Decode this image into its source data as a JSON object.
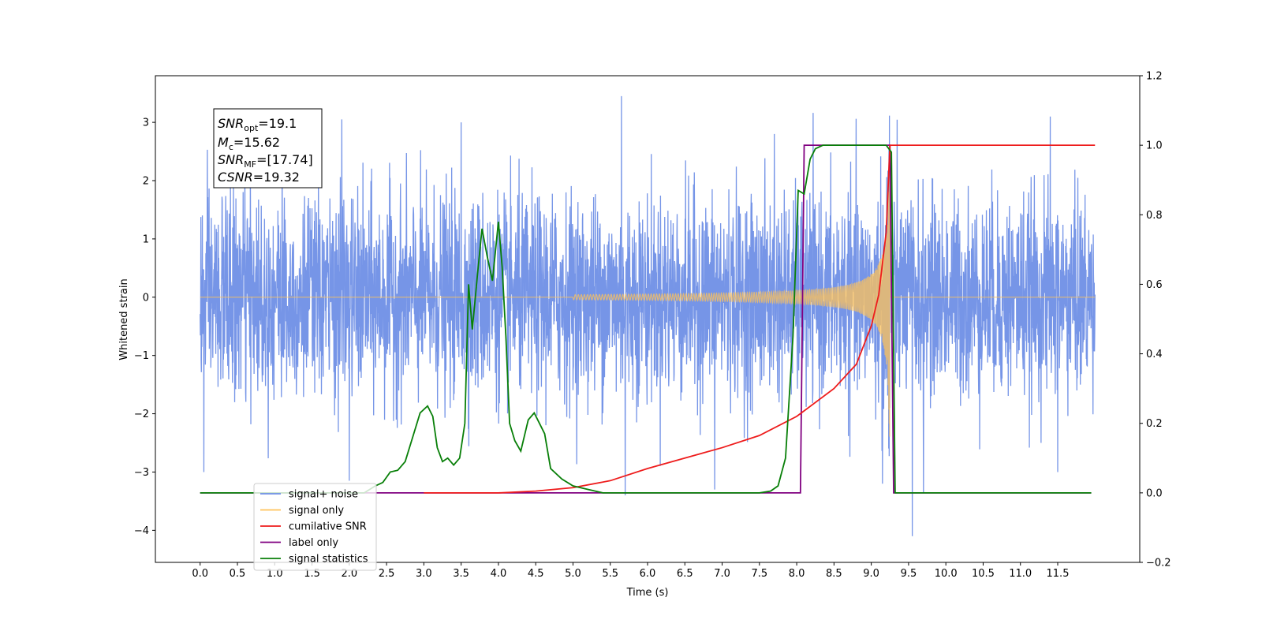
{
  "chart_data": {
    "type": "line",
    "xlabel": "Time (s)",
    "ylabel": "Whitened strain",
    "xlim": [
      -0.6,
      12.6
    ],
    "ylim": [
      -4.55,
      3.8
    ],
    "ylim_right": [
      -0.2,
      1.2
    ],
    "x_ticks": [
      "0.0",
      "0.5",
      "1.0",
      "1.5",
      "2.0",
      "2.5",
      "3.0",
      "3.5",
      "4.0",
      "4.5",
      "5.0",
      "5.5",
      "6.0",
      "6.5",
      "7.0",
      "7.5",
      "8.0",
      "8.5",
      "9.0",
      "9.5",
      "10.0",
      "10.5",
      "11.0",
      "11.5"
    ],
    "y_ticks": [
      "3",
      "2",
      "1",
      "0",
      "−1",
      "−2",
      "−3",
      "−4"
    ],
    "y_ticks_right": [
      "1.2",
      "1.0",
      "0.8",
      "0.6",
      "0.4",
      "0.2",
      "0.0",
      "−0.2"
    ],
    "grid": false,
    "legend_position": "lower-left",
    "annotation": {
      "snr_opt": {
        "base": "SNR",
        "sub": "opt",
        "value": "=19.1"
      },
      "mc": {
        "base": "M",
        "sub": "c",
        "value": "=15.62"
      },
      "snr_mf": {
        "base": "SNR",
        "sub": "MF",
        "value": "=[17.74]"
      },
      "csnr": {
        "base": "CSNR",
        "sub": "",
        "value": "=19.32"
      }
    },
    "series": [
      {
        "name": "signal+ noise",
        "color": "#6f8fe6",
        "axis": "left",
        "x_range": [
          0,
          12
        ],
        "std": 0.85,
        "peaks": [
          [
            0.05,
            2.05
          ],
          [
            0.05,
            -3.0
          ],
          [
            0.6,
            2.3
          ],
          [
            1.1,
            2.8
          ],
          [
            1.9,
            3.05
          ],
          [
            2.0,
            -3.15
          ],
          [
            3.5,
            3.0
          ],
          [
            5.65,
            3.45
          ],
          [
            5.7,
            -3.4
          ],
          [
            6.9,
            -3.3
          ],
          [
            7.7,
            2.8
          ],
          [
            9.15,
            -3.2
          ],
          [
            9.55,
            -4.1
          ],
          [
            9.7,
            -3.35
          ],
          [
            11.4,
            3.1
          ],
          [
            11.5,
            -3.0
          ]
        ]
      },
      {
        "name": "signal only",
        "color": "#ffc35a",
        "axis": "left",
        "chirp_start": 5.0,
        "merger": 9.25,
        "peak_amplitude": 3.2
      },
      {
        "name": "cumilative SNR",
        "color": "#ee1c1c",
        "axis": "right",
        "x": [
          3.0,
          4.0,
          4.5,
          5.0,
          5.5,
          6.0,
          6.5,
          7.0,
          7.5,
          8.0,
          8.5,
          8.8,
          9.0,
          9.1,
          9.2,
          9.25,
          9.27,
          12.0
        ],
        "values": [
          0.0,
          0.0,
          0.005,
          0.015,
          0.035,
          0.07,
          0.1,
          0.13,
          0.165,
          0.22,
          0.3,
          0.37,
          0.48,
          0.57,
          0.75,
          1.0,
          1.0,
          1.0
        ]
      },
      {
        "name": "label only",
        "color": "#800080",
        "axis": "right",
        "x": [
          0.0,
          8.05,
          8.1,
          9.25,
          9.3,
          11.95
        ],
        "values": [
          0.0,
          0.0,
          1.0,
          1.0,
          0.0,
          0.0
        ]
      },
      {
        "name": "signal statistics",
        "color": "#087f08",
        "axis": "right",
        "x": [
          0.0,
          2.2,
          2.35,
          2.45,
          2.55,
          2.65,
          2.75,
          2.85,
          2.95,
          3.05,
          3.12,
          3.18,
          3.25,
          3.32,
          3.4,
          3.48,
          3.55,
          3.6,
          3.65,
          3.72,
          3.78,
          3.85,
          3.92,
          4.0,
          4.05,
          4.1,
          4.15,
          4.22,
          4.3,
          4.4,
          4.48,
          4.55,
          4.62,
          4.7,
          4.85,
          5.0,
          5.2,
          5.4,
          6.0,
          7.5,
          7.65,
          7.75,
          7.85,
          7.95,
          8.02,
          8.1,
          8.18,
          8.25,
          8.35,
          8.5,
          9.2,
          9.27,
          9.32,
          11.95
        ],
        "values": [
          0.0,
          0.0,
          0.02,
          0.03,
          0.06,
          0.065,
          0.09,
          0.16,
          0.23,
          0.25,
          0.22,
          0.13,
          0.09,
          0.1,
          0.08,
          0.1,
          0.2,
          0.6,
          0.47,
          0.63,
          0.76,
          0.68,
          0.61,
          0.78,
          0.65,
          0.45,
          0.2,
          0.15,
          0.12,
          0.21,
          0.23,
          0.2,
          0.17,
          0.07,
          0.04,
          0.02,
          0.01,
          0.0,
          0.0,
          0.0,
          0.005,
          0.02,
          0.1,
          0.45,
          0.87,
          0.86,
          0.96,
          0.99,
          1.0,
          1.0,
          1.0,
          0.98,
          0.0,
          0.0
        ]
      }
    ]
  }
}
